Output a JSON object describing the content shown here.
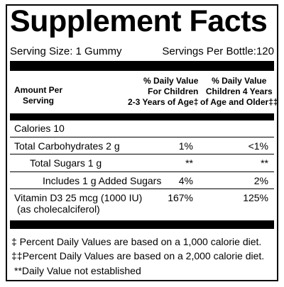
{
  "header": {
    "title": "Supplement Facts",
    "serving_size": "Serving Size: 1 Gummy",
    "servings_per_bottle": "Servings Per Bottle:120"
  },
  "table": {
    "columns": [
      [
        "Amount Per",
        "Serving"
      ],
      [
        "% Daily Value",
        "For Children",
        "2-3 Years of Age‡"
      ],
      [
        "% Daily Value",
        "Children 4 Years",
        "of Age and Older‡‡"
      ]
    ],
    "rows": [
      {
        "label": "Calories 10"
      },
      {
        "label": "Total Carbohydrates 2 g",
        "children": "1%",
        "adults": "<1%"
      },
      {
        "label": "Total Sugars 1 g",
        "children": "**",
        "adults": "**"
      },
      {
        "label": "Includes 1 g Added Sugars",
        "children": "4%",
        "adults": "2%"
      },
      {
        "label": "Vitamin D3 25 mcg (1000 IU)",
        "sublabel": "(as cholecalciferol)",
        "children": "167%",
        "adults": "125%"
      }
    ]
  },
  "footnotes": [
    "‡ Percent Daily Values are based on a 1,000 calorie diet.",
    "‡‡Percent Daily Values are based on a 2,000 calorie diet.",
    "**Daily Value not established"
  ]
}
